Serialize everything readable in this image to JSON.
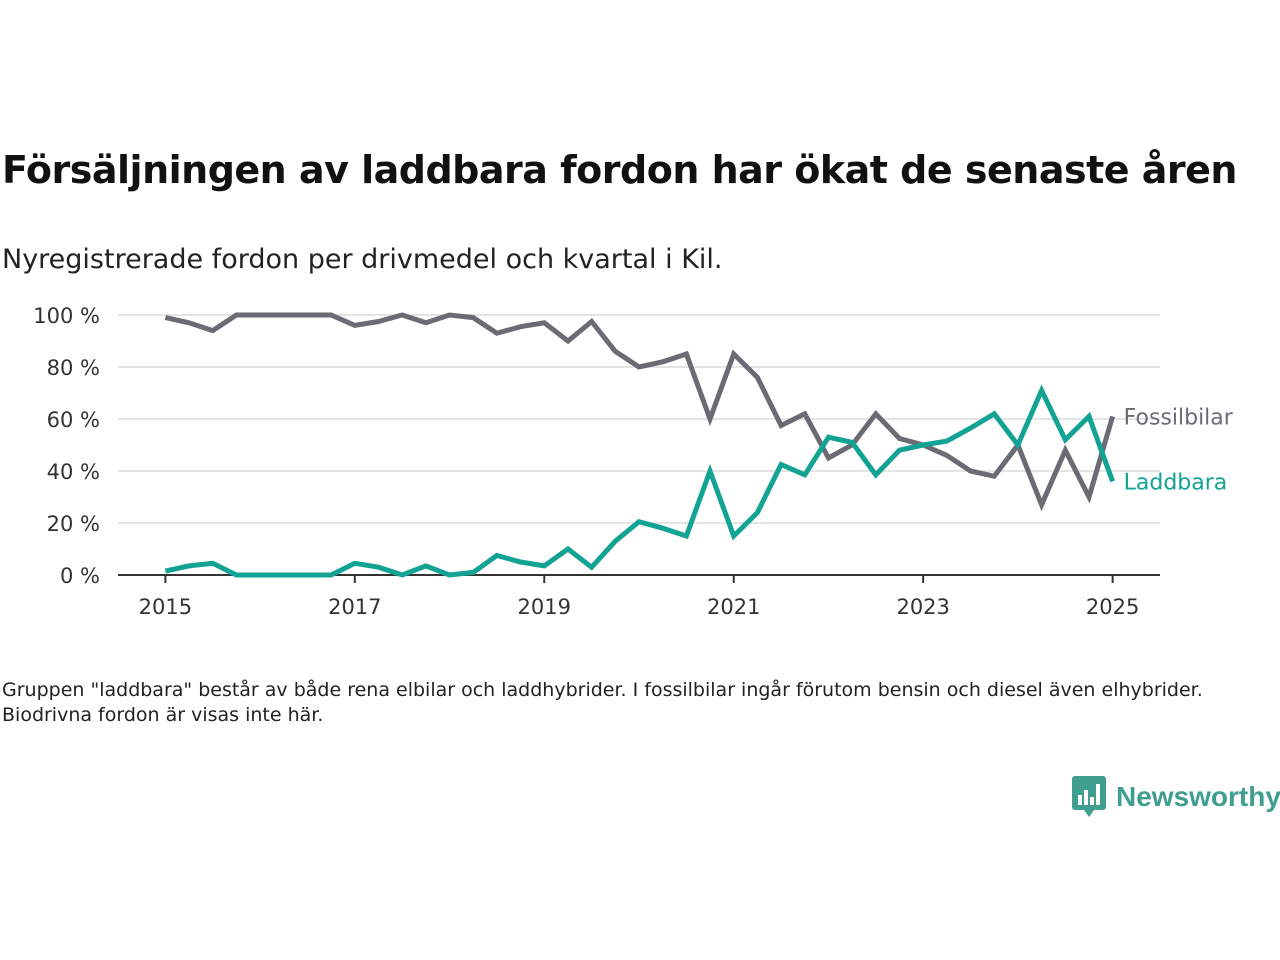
{
  "title": "Försäljningen av laddbara fordon har ökat de senaste åren",
  "subtitle": "Nyregistrerade fordon per drivmedel och kvartal i Kil.",
  "footnote": "Gruppen \"laddbara\" består av både rena elbilar och laddhybrider. I fossilbilar ingår förutom bensin och diesel även elhybrider. Biodrivna fordon är visas inte här.",
  "brand": {
    "name": "Newsworthy",
    "icon": "newsworthy-logo-icon",
    "color": "#3f9e8e"
  },
  "chart_data": {
    "type": "line",
    "x": [
      2015.0,
      2015.25,
      2015.5,
      2015.75,
      2016.0,
      2016.25,
      2016.5,
      2016.75,
      2017.0,
      2017.25,
      2017.5,
      2017.75,
      2018.0,
      2018.25,
      2018.5,
      2018.75,
      2019.0,
      2019.25,
      2019.5,
      2019.75,
      2020.0,
      2020.25,
      2020.5,
      2020.75,
      2021.0,
      2021.25,
      2021.5,
      2021.75,
      2022.0,
      2022.25,
      2022.5,
      2022.75,
      2023.0,
      2023.25,
      2023.5,
      2023.75,
      2024.0,
      2024.25,
      2024.5,
      2024.75,
      2025.0
    ],
    "series": [
      {
        "name": "Fossilbilar",
        "color": "#6b6b73",
        "values": [
          99,
          97,
          94,
          100,
          100,
          100,
          100,
          100,
          96,
          97.5,
          100,
          97,
          100,
          99,
          93,
          95.5,
          97,
          90,
          97.5,
          86,
          80,
          82,
          85,
          60,
          85,
          76,
          57.5,
          62,
          45,
          50,
          62,
          52.5,
          50,
          46,
          40,
          38,
          50,
          27,
          48,
          30,
          61
        ]
      },
      {
        "name": "Laddbara",
        "color": "#13a395",
        "values": [
          1.5,
          3.5,
          4.5,
          0,
          0,
          0,
          0,
          0,
          4.5,
          3,
          0,
          3.5,
          0,
          1,
          7.5,
          5,
          3.5,
          10,
          3,
          13,
          20.5,
          18,
          15,
          40,
          15,
          24,
          42.5,
          38.5,
          53,
          51,
          38.5,
          48,
          50,
          51.5,
          56.5,
          62,
          50,
          71,
          52,
          61,
          36
        ]
      }
    ],
    "xticks": [
      "2015",
      "2017",
      "2019",
      "2021",
      "2023",
      "2025"
    ],
    "xtick_values": [
      2015,
      2017,
      2019,
      2021,
      2023,
      2025
    ],
    "yticks": [
      "0 %",
      "20 %",
      "40 %",
      "60 %",
      "80 %",
      "100 %"
    ],
    "ytick_values": [
      0,
      20,
      40,
      60,
      80,
      100
    ],
    "xlim": [
      2014.5,
      2025.5
    ],
    "ylim": [
      0,
      100
    ],
    "xlabel": "",
    "ylabel": "",
    "grid": true,
    "legend": "inline-right"
  }
}
